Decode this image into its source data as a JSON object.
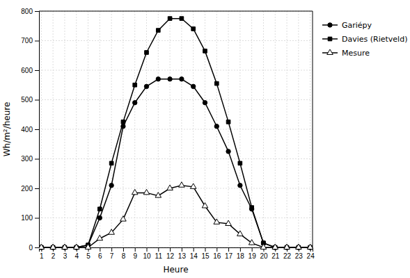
{
  "chart_data": {
    "type": "line",
    "xlabel": "Heure",
    "ylabel": "Wh/m²/heure",
    "x": [
      1,
      2,
      3,
      4,
      5,
      6,
      7,
      8,
      9,
      10,
      11,
      12,
      13,
      14,
      15,
      16,
      17,
      18,
      19,
      20,
      21,
      22,
      23,
      24
    ],
    "series": [
      {
        "name": "Gariépy",
        "color": "#000000",
        "marker": "circle",
        "values": [
          0,
          0,
          0,
          0,
          8,
          100,
          210,
          410,
          490,
          545,
          570,
          570,
          570,
          545,
          490,
          410,
          325,
          210,
          130,
          15,
          0,
          0,
          0,
          0
        ]
      },
      {
        "name": "Davies (Rietveld)",
        "color": "#000000",
        "marker": "square",
        "values": [
          0,
          0,
          0,
          0,
          8,
          130,
          285,
          425,
          550,
          660,
          735,
          775,
          775,
          740,
          665,
          555,
          425,
          285,
          135,
          15,
          0,
          0,
          0,
          0
        ]
      },
      {
        "name": "Mesure",
        "color": "#000000",
        "marker": "triangle-open",
        "values": [
          0,
          0,
          0,
          0,
          0,
          30,
          50,
          95,
          185,
          185,
          175,
          200,
          210,
          205,
          140,
          85,
          80,
          45,
          15,
          0,
          0,
          0,
          0,
          0
        ]
      }
    ],
    "xlim": [
      0.8,
      24.2
    ],
    "xticks": [
      1,
      2,
      3,
      4,
      5,
      6,
      7,
      8,
      9,
      10,
      11,
      12,
      13,
      14,
      15,
      16,
      17,
      18,
      19,
      20,
      21,
      22,
      23,
      24
    ],
    "ylim": [
      0,
      800
    ],
    "yticks": [
      0,
      100,
      200,
      300,
      400,
      500,
      600,
      700,
      800
    ],
    "grid": true,
    "legend": "right"
  }
}
